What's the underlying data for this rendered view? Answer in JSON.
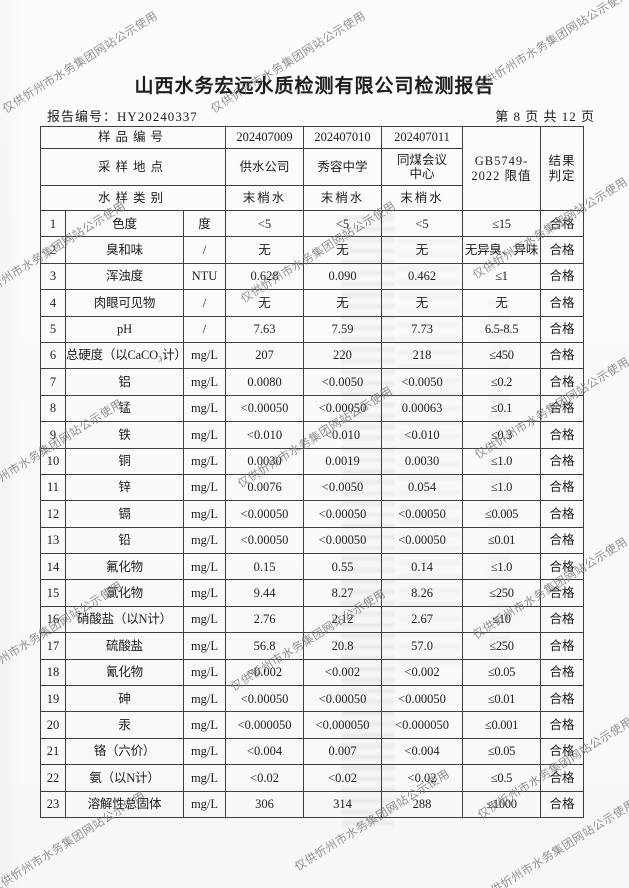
{
  "page": {
    "title": "山西水务宏远水质检测有限公司检测报告",
    "report_no": "报告编号：HY20240337",
    "page_indicator": "第 8 页 共 12 页",
    "watermark_text": "仅供忻州市水务集团网站公示使用"
  },
  "table": {
    "header": {
      "sample_id_label": "样品编号",
      "location_label": "采样地点",
      "sample_type_label": "水样类别",
      "sample_ids": [
        "202407009",
        "202407010",
        "202407011"
      ],
      "locations": [
        "供水公司",
        "秀容中学",
        "同煤会议中心"
      ],
      "sample_types": [
        "末梢水",
        "末梢水",
        "末梢水"
      ],
      "limit_line1": "GB5749-",
      "limit_line2": "2022 限值",
      "result_line1": "结果",
      "result_line2": "判定"
    },
    "rows": [
      {
        "no": "1",
        "name": "色度",
        "unit": "度",
        "values": [
          "<5",
          "<5",
          "<5"
        ],
        "limit": "≤15",
        "verdict": "合格"
      },
      {
        "no": "2",
        "name": "臭和味",
        "unit": "/",
        "values": [
          "无",
          "无",
          "无"
        ],
        "limit": "无异臭、异味",
        "verdict": "合格"
      },
      {
        "no": "3",
        "name": "浑浊度",
        "unit": "NTU",
        "values": [
          "0.628",
          "0.090",
          "0.462"
        ],
        "limit": "≤1",
        "verdict": "合格"
      },
      {
        "no": "4",
        "name": "肉眼可见物",
        "unit": "/",
        "values": [
          "无",
          "无",
          "无"
        ],
        "limit": "无",
        "verdict": "合格"
      },
      {
        "no": "5",
        "name": "pH",
        "unit": "/",
        "values": [
          "7.63",
          "7.59",
          "7.73"
        ],
        "limit": "6.5-8.5",
        "verdict": "合格"
      },
      {
        "no": "6",
        "name": "总硬度（以CaCO₃计）",
        "unit": "mg/L",
        "values": [
          "207",
          "220",
          "218"
        ],
        "limit": "≤450",
        "verdict": "合格"
      },
      {
        "no": "7",
        "name": "铝",
        "unit": "mg/L",
        "values": [
          "0.0080",
          "<0.0050",
          "<0.0050"
        ],
        "limit": "≤0.2",
        "verdict": "合格"
      },
      {
        "no": "8",
        "name": "锰",
        "unit": "mg/L",
        "values": [
          "<0.00050",
          "<0.00050",
          "0.00063"
        ],
        "limit": "≤0.1",
        "verdict": "合格"
      },
      {
        "no": "9",
        "name": "铁",
        "unit": "mg/L",
        "values": [
          "<0.010",
          "<0.010",
          "<0.010"
        ],
        "limit": "≤0.3",
        "verdict": "合格"
      },
      {
        "no": "10",
        "name": "铜",
        "unit": "mg/L",
        "values": [
          "0.0030",
          "0.0019",
          "0.0030"
        ],
        "limit": "≤1.0",
        "verdict": "合格"
      },
      {
        "no": "11",
        "name": "锌",
        "unit": "mg/L",
        "values": [
          "0.0076",
          "<0.0050",
          "0.054"
        ],
        "limit": "≤1.0",
        "verdict": "合格"
      },
      {
        "no": "12",
        "name": "镉",
        "unit": "mg/L",
        "values": [
          "<0.00050",
          "<0.00050",
          "<0.00050"
        ],
        "limit": "≤0.005",
        "verdict": "合格"
      },
      {
        "no": "13",
        "name": "铅",
        "unit": "mg/L",
        "values": [
          "<0.00050",
          "<0.00050",
          "<0.00050"
        ],
        "limit": "≤0.01",
        "verdict": "合格"
      },
      {
        "no": "14",
        "name": "氟化物",
        "unit": "mg/L",
        "values": [
          "0.15",
          "0.55",
          "0.14"
        ],
        "limit": "≤1.0",
        "verdict": "合格"
      },
      {
        "no": "15",
        "name": "氯化物",
        "unit": "mg/L",
        "values": [
          "9.44",
          "8.27",
          "8.26"
        ],
        "limit": "≤250",
        "verdict": "合格"
      },
      {
        "no": "16",
        "name": "硝酸盐（以N计）",
        "unit": "mg/L",
        "values": [
          "2.76",
          "2.12",
          "2.67"
        ],
        "limit": "≤10",
        "verdict": "合格"
      },
      {
        "no": "17",
        "name": "硫酸盐",
        "unit": "mg/L",
        "values": [
          "56.8",
          "20.8",
          "57.0"
        ],
        "limit": "≤250",
        "verdict": "合格"
      },
      {
        "no": "18",
        "name": "氰化物",
        "unit": "mg/L",
        "values": [
          "<0.002",
          "<0.002",
          "<0.002"
        ],
        "limit": "≤0.05",
        "verdict": "合格"
      },
      {
        "no": "19",
        "name": "砷",
        "unit": "mg/L",
        "values": [
          "<0.00050",
          "<0.00050",
          "<0.00050"
        ],
        "limit": "≤0.01",
        "verdict": "合格"
      },
      {
        "no": "20",
        "name": "汞",
        "unit": "mg/L",
        "values": [
          "<0.000050",
          "<0.000050",
          "<0.000050"
        ],
        "limit": "≤0.001",
        "verdict": "合格"
      },
      {
        "no": "21",
        "name": "铬（六价）",
        "unit": "mg/L",
        "values": [
          "<0.004",
          "0.007",
          "<0.004"
        ],
        "limit": "≤0.05",
        "verdict": "合格"
      },
      {
        "no": "22",
        "name": "氨（以N计）",
        "unit": "mg/L",
        "values": [
          "<0.02",
          "<0.02",
          "<0.02"
        ],
        "limit": "≤0.5",
        "verdict": "合格"
      },
      {
        "no": "23",
        "name": "溶解性总固体",
        "unit": "mg/L",
        "values": [
          "306",
          "314",
          "288"
        ],
        "limit": "≤1000",
        "verdict": "合格"
      }
    ]
  }
}
